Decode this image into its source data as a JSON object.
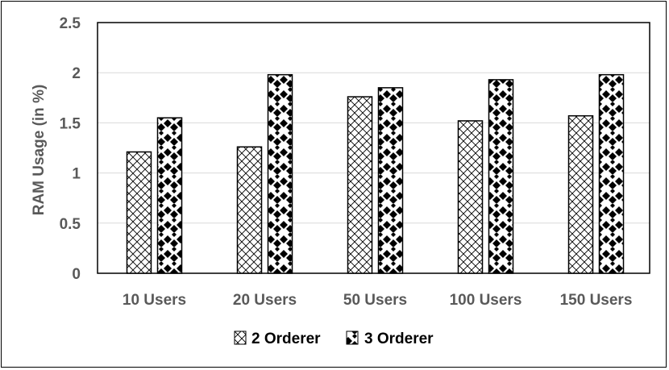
{
  "chart_data": {
    "type": "bar",
    "title": "",
    "xlabel": "",
    "ylabel": "RAM Usage (in %)",
    "ylim": [
      0,
      2.5
    ],
    "yticks": [
      "0",
      "0.5",
      "1",
      "1.5",
      "2",
      "2.5"
    ],
    "categories": [
      "10 Users",
      "20 Users",
      "50 Users",
      "100 Users",
      "150 Users"
    ],
    "series": [
      {
        "name": "2 Orderer",
        "values": [
          1.21,
          1.26,
          1.76,
          1.52,
          1.57
        ],
        "pattern": "crosshatch"
      },
      {
        "name": "3 Orderer",
        "values": [
          1.55,
          1.98,
          1.85,
          1.93,
          1.98
        ],
        "pattern": "black-diamond-dots"
      }
    ],
    "grid": true,
    "legend": "bottom-center",
    "colors": {
      "axis_text": "#595959",
      "grid": "#d9d9d9",
      "bar_border": "#000000"
    }
  }
}
